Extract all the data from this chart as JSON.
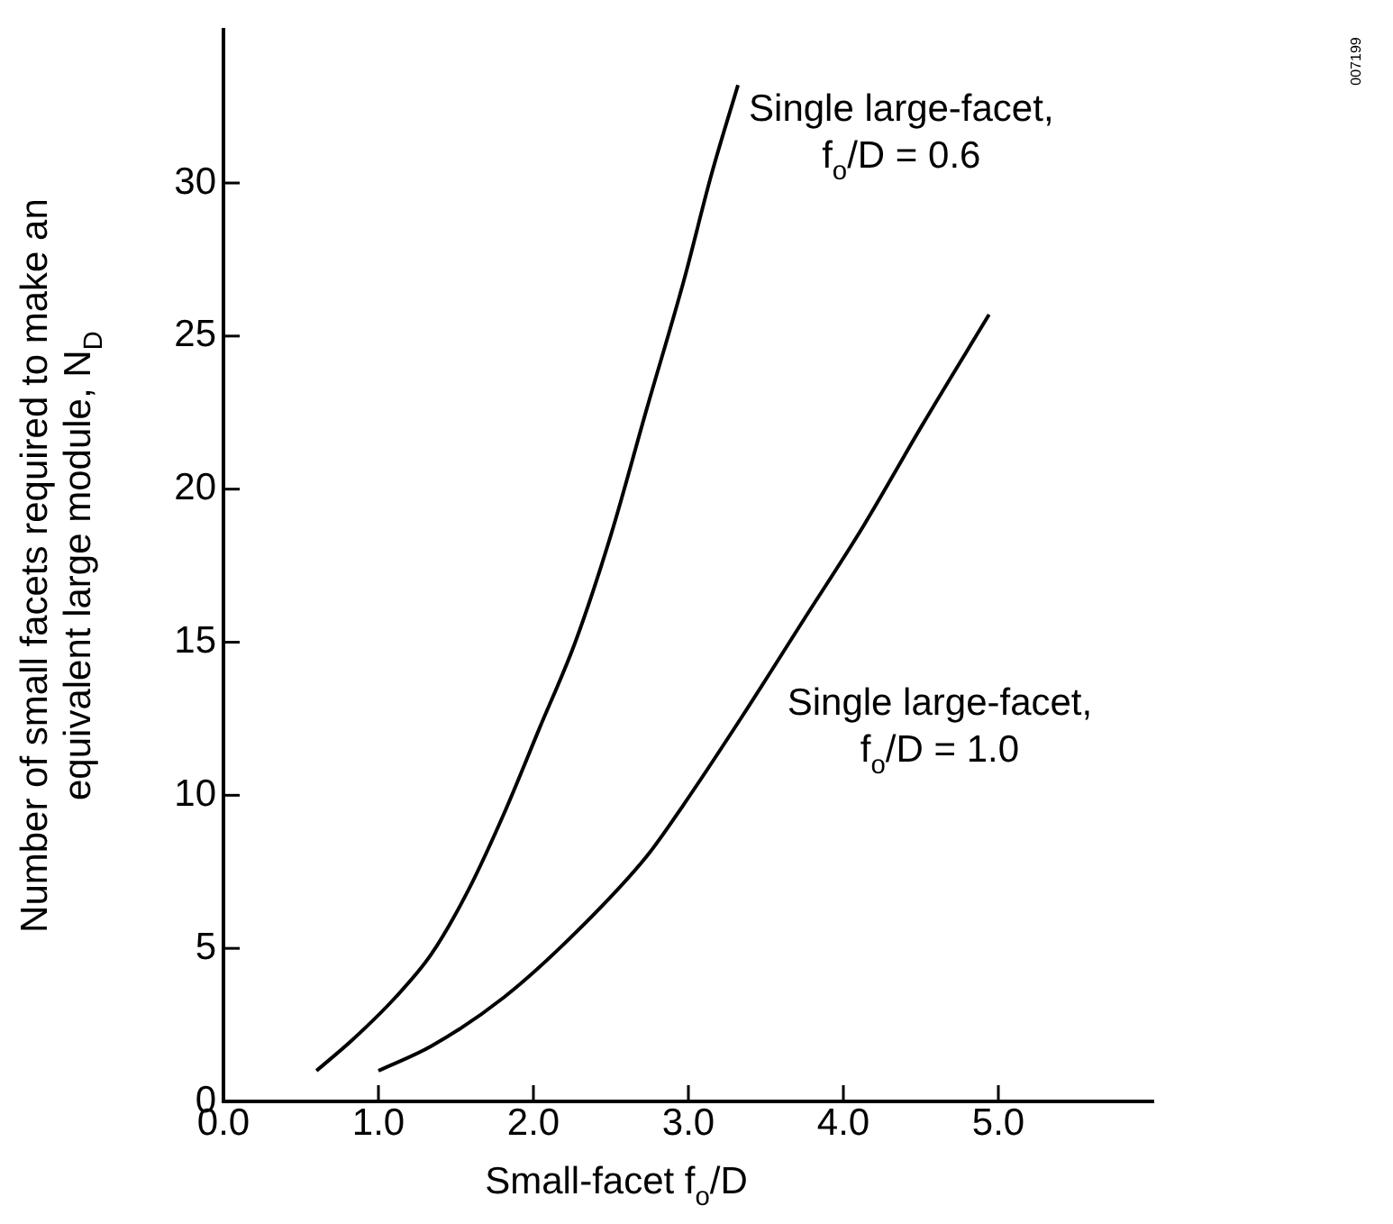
{
  "chart_data": {
    "type": "line",
    "xlabel": "Small-facet f$_{o}$/D",
    "ylabel": "Number of small facets required to make an equivalent large module, N$_{D}$",
    "series": [
      {
        "name": "Single large-facet, f$_{o}$/D = 0.6",
        "color": "#000000",
        "x": [
          0.6,
          0.83,
          1.11,
          1.34,
          1.58,
          1.81,
          2.04,
          2.27,
          2.5,
          2.73,
          2.97,
          3.15,
          3.32
        ],
        "values": [
          1,
          2,
          3.4,
          4.8,
          6.9,
          9.4,
          12.2,
          15,
          18.5,
          22.6,
          26.8,
          30.3,
          33.2
        ]
      },
      {
        "name": "Single large-facet, f$_{o}$/D = 1.0",
        "color": "#000000",
        "x": [
          1.0,
          1.34,
          1.81,
          2.27,
          2.73,
          2.97,
          3.35,
          3.74,
          4.13,
          4.51,
          4.94
        ],
        "values": [
          1,
          1.8,
          3.4,
          5.5,
          8,
          9.7,
          12.6,
          15.7,
          18.8,
          22.1,
          25.7
        ]
      }
    ],
    "xlim": [
      0,
      6
    ],
    "xticks": [
      {
        "value": 0,
        "label": "0.0"
      },
      {
        "value": 1,
        "label": "1.0"
      },
      {
        "value": 2,
        "label": "2.0"
      },
      {
        "value": 3,
        "label": "3.0"
      },
      {
        "value": 4,
        "label": "4.0"
      },
      {
        "value": 5,
        "label": "5.0"
      }
    ],
    "ylim": [
      0,
      35
    ],
    "yticks": [
      0,
      5,
      10,
      15,
      20,
      25,
      30
    ],
    "grid": false,
    "legend": false,
    "marker": "none",
    "line_style": "solid",
    "annotations": [
      "007199"
    ]
  }
}
